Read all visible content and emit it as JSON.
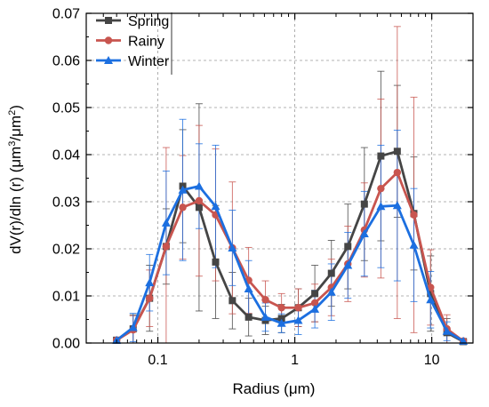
{
  "chart_data": {
    "type": "line",
    "x_scale": "log",
    "xlim": [
      0.03,
      20
    ],
    "ylim": [
      0,
      0.07
    ],
    "xlabel": "Radius (μm)",
    "ylabel_parts": [
      "dV(r)/dln (r) (μm",
      "3",
      "/μm",
      "2",
      ")"
    ],
    "x_ticks": [
      0.1,
      1,
      10
    ],
    "x_tick_labels": [
      "0.1",
      "1",
      "10"
    ],
    "y_ticks": [
      0,
      0.01,
      0.02,
      0.03,
      0.04,
      0.05,
      0.06,
      0.07
    ],
    "y_tick_labels": [
      "0.00",
      "0.01",
      "0.02",
      "0.03",
      "0.04",
      "0.05",
      "0.06",
      "0.07"
    ],
    "grid": true,
    "legend_position": "top-left",
    "x": [
      0.05,
      0.066,
      0.087,
      0.115,
      0.152,
      0.2,
      0.264,
      0.35,
      0.46,
      0.61,
      0.8,
      1.06,
      1.4,
      1.85,
      2.44,
      3.22,
      4.25,
      5.6,
      7.4,
      9.8,
      12.9,
      17.0
    ],
    "series": [
      {
        "name": "Spring",
        "color": "#454545",
        "marker": "square",
        "values": [
          0.0006,
          0.003,
          0.0095,
          0.0205,
          0.0333,
          0.0288,
          0.0172,
          0.009,
          0.0055,
          0.0048,
          0.0052,
          0.0075,
          0.0105,
          0.0148,
          0.0205,
          0.0295,
          0.0397,
          0.0407,
          0.0275,
          0.0105,
          0.0022,
          0.0003
        ],
        "errors": [
          0.0005,
          0.003,
          0.007,
          0.008,
          0.012,
          0.022,
          0.012,
          0.006,
          0.004,
          0.003,
          0.003,
          0.004,
          0.006,
          0.007,
          0.009,
          0.012,
          0.018,
          0.014,
          0.012,
          0.008,
          0.003,
          0.0004
        ]
      },
      {
        "name": "Rainy",
        "color": "#c8554f",
        "marker": "circle",
        "values": [
          0.0006,
          0.0028,
          0.0095,
          0.0205,
          0.0288,
          0.0302,
          0.0272,
          0.0202,
          0.0133,
          0.0092,
          0.0075,
          0.0075,
          0.0085,
          0.0118,
          0.0168,
          0.024,
          0.0328,
          0.0362,
          0.0272,
          0.0118,
          0.003,
          0.0004
        ],
        "errors": [
          0.0005,
          0.003,
          0.006,
          0.021,
          0.011,
          0.016,
          0.014,
          0.014,
          0.007,
          0.004,
          0.003,
          0.004,
          0.004,
          0.006,
          0.008,
          0.01,
          0.019,
          0.031,
          0.025,
          0.008,
          0.003,
          0.0004
        ]
      },
      {
        "name": "Winter",
        "color": "#1c6fe0",
        "marker": "triangle",
        "values": [
          0.0006,
          0.0033,
          0.0128,
          0.0255,
          0.0325,
          0.0333,
          0.029,
          0.0202,
          0.0115,
          0.0055,
          0.0042,
          0.0048,
          0.0072,
          0.0108,
          0.0165,
          0.0232,
          0.029,
          0.0292,
          0.0208,
          0.0092,
          0.0025,
          0.0004
        ],
        "errors": [
          0.0005,
          0.003,
          0.006,
          0.011,
          0.015,
          0.009,
          0.013,
          0.008,
          0.006,
          0.003,
          0.002,
          0.003,
          0.004,
          0.006,
          0.007,
          0.009,
          0.013,
          0.016,
          0.012,
          0.006,
          0.002,
          0.0004
        ]
      }
    ]
  }
}
